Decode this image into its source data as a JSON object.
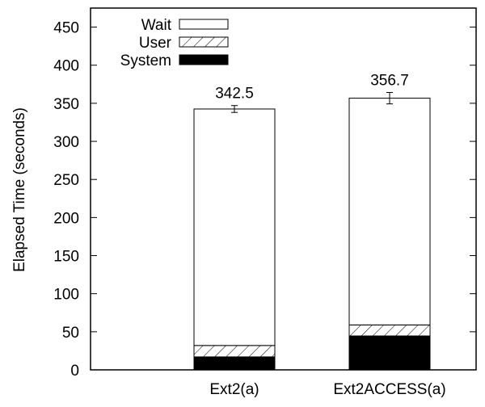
{
  "chart_data": {
    "type": "bar",
    "stacked": true,
    "title": "",
    "xlabel": "",
    "ylabel": "Elapsed Time (seconds)",
    "ylim": [
      0,
      475
    ],
    "yticks": [
      0,
      50,
      100,
      150,
      200,
      250,
      300,
      350,
      400,
      450
    ],
    "categories": [
      "Ext2(a)",
      "Ext2ACCESS(a)"
    ],
    "series": [
      {
        "name": "System",
        "values": [
          17,
          44.5
        ],
        "fill": "#000000"
      },
      {
        "name": "User",
        "values": [
          15,
          14.5
        ],
        "fill": "hatch"
      },
      {
        "name": "Wait",
        "values": [
          310.5,
          297.7
        ],
        "fill": "#ffffff"
      }
    ],
    "totals": [
      342.5,
      356.7
    ],
    "total_labels": [
      "342.5",
      "356.7"
    ],
    "error": [
      4.5,
      7.5
    ],
    "legend": {
      "placement": "top-left",
      "entries": [
        "Wait",
        "User",
        "System"
      ]
    },
    "grid": false
  }
}
